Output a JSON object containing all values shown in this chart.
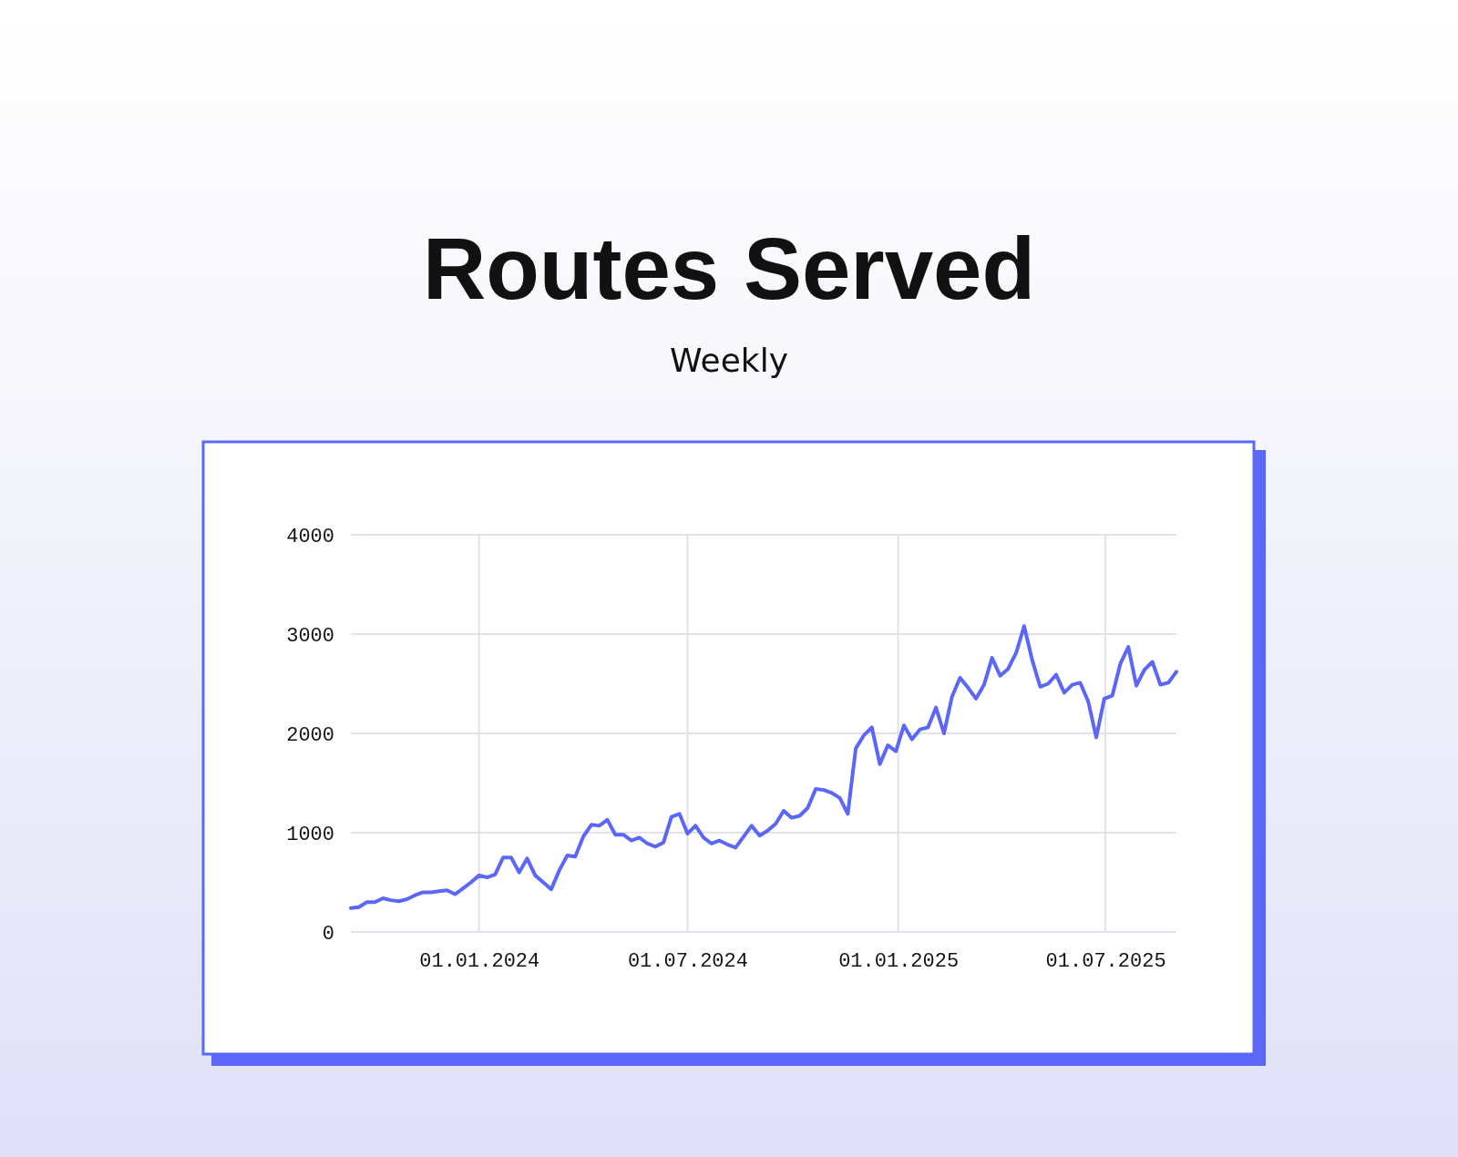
{
  "chart_data": {
    "type": "line",
    "title": "Routes Served",
    "subtitle": "Weekly",
    "x": [
      "2023-09-11",
      "2023-09-18",
      "2023-09-25",
      "2023-10-02",
      "2023-10-09",
      "2023-10-16",
      "2023-10-23",
      "2023-10-30",
      "2023-11-06",
      "2023-11-13",
      "2023-11-20",
      "2023-11-27",
      "2023-12-04",
      "2023-12-11",
      "2023-12-18",
      "2023-12-25",
      "2024-01-01",
      "2024-01-08",
      "2024-01-15",
      "2024-01-22",
      "2024-01-29",
      "2024-02-05",
      "2024-02-12",
      "2024-02-19",
      "2024-02-26",
      "2024-03-04",
      "2024-03-11",
      "2024-03-18",
      "2024-03-25",
      "2024-04-01",
      "2024-04-08",
      "2024-04-15",
      "2024-04-22",
      "2024-04-29",
      "2024-05-06",
      "2024-05-13",
      "2024-05-20",
      "2024-05-27",
      "2024-06-03",
      "2024-06-10",
      "2024-06-17",
      "2024-06-24",
      "2024-07-01",
      "2024-07-08",
      "2024-07-15",
      "2024-07-22",
      "2024-07-29",
      "2024-08-05",
      "2024-08-12",
      "2024-08-19",
      "2024-08-26",
      "2024-09-02",
      "2024-09-09",
      "2024-09-16",
      "2024-09-23",
      "2024-09-30",
      "2024-10-07",
      "2024-10-14",
      "2024-10-21",
      "2024-10-28",
      "2024-11-04",
      "2024-11-11",
      "2024-11-18",
      "2024-11-25",
      "2024-12-02",
      "2024-12-09",
      "2024-12-16",
      "2024-12-23",
      "2024-12-30",
      "2025-01-06",
      "2025-01-13",
      "2025-01-20",
      "2025-01-27",
      "2025-02-03",
      "2025-02-10",
      "2025-02-17",
      "2025-02-24",
      "2025-03-03",
      "2025-03-10",
      "2025-03-17",
      "2025-03-24",
      "2025-03-31",
      "2025-04-07",
      "2025-04-14",
      "2025-04-21",
      "2025-04-28",
      "2025-05-05",
      "2025-05-12",
      "2025-05-19",
      "2025-05-26",
      "2025-06-02",
      "2025-06-09",
      "2025-06-16",
      "2025-06-23",
      "2025-06-30",
      "2025-07-07",
      "2025-07-14",
      "2025-07-21",
      "2025-07-28",
      "2025-08-04",
      "2025-08-11",
      "2025-08-18",
      "2025-08-25",
      "2025-09-01"
    ],
    "series": [
      {
        "color": "#5b67f8",
        "values": [
          240,
          250,
          300,
          300,
          340,
          320,
          310,
          330,
          370,
          400,
          400,
          410,
          420,
          380,
          440,
          500,
          570,
          550,
          580,
          750,
          750,
          600,
          740,
          570,
          500,
          430,
          620,
          770,
          760,
          960,
          1080,
          1070,
          1130,
          980,
          980,
          920,
          950,
          890,
          860,
          900,
          1160,
          1190,
          990,
          1070,
          950,
          890,
          920,
          880,
          850,
          960,
          1070,
          970,
          1020,
          1090,
          1220,
          1150,
          1170,
          1250,
          1440,
          1430,
          1400,
          1350,
          1190,
          1850,
          1980,
          2060,
          1690,
          1880,
          1820,
          2080,
          1940,
          2040,
          2060,
          2260,
          2000,
          2370,
          2560,
          2460,
          2350,
          2490,
          2760,
          2580,
          2650,
          2810,
          3080,
          2740,
          2470,
          2500,
          2590,
          2410,
          2490,
          2510,
          2320,
          1960,
          2350,
          2380,
          2700,
          2870,
          2480,
          2640,
          2720,
          2490,
          2510,
          2620
        ]
      }
    ],
    "xlim": [
      "2023-09-11",
      "2025-09-01"
    ],
    "xticks": [
      {
        "value": "2024-01-01",
        "label": "01.01.2024"
      },
      {
        "value": "2024-07-01",
        "label": "01.07.2024"
      },
      {
        "value": "2025-01-01",
        "label": "01.01.2025"
      },
      {
        "value": "2025-07-01",
        "label": "01.07.2025"
      }
    ],
    "ylim": [
      0,
      4000
    ],
    "yticks": [
      0,
      1000,
      2000,
      3000,
      4000
    ],
    "grid": true,
    "line_style": "solid",
    "marker": "none"
  }
}
